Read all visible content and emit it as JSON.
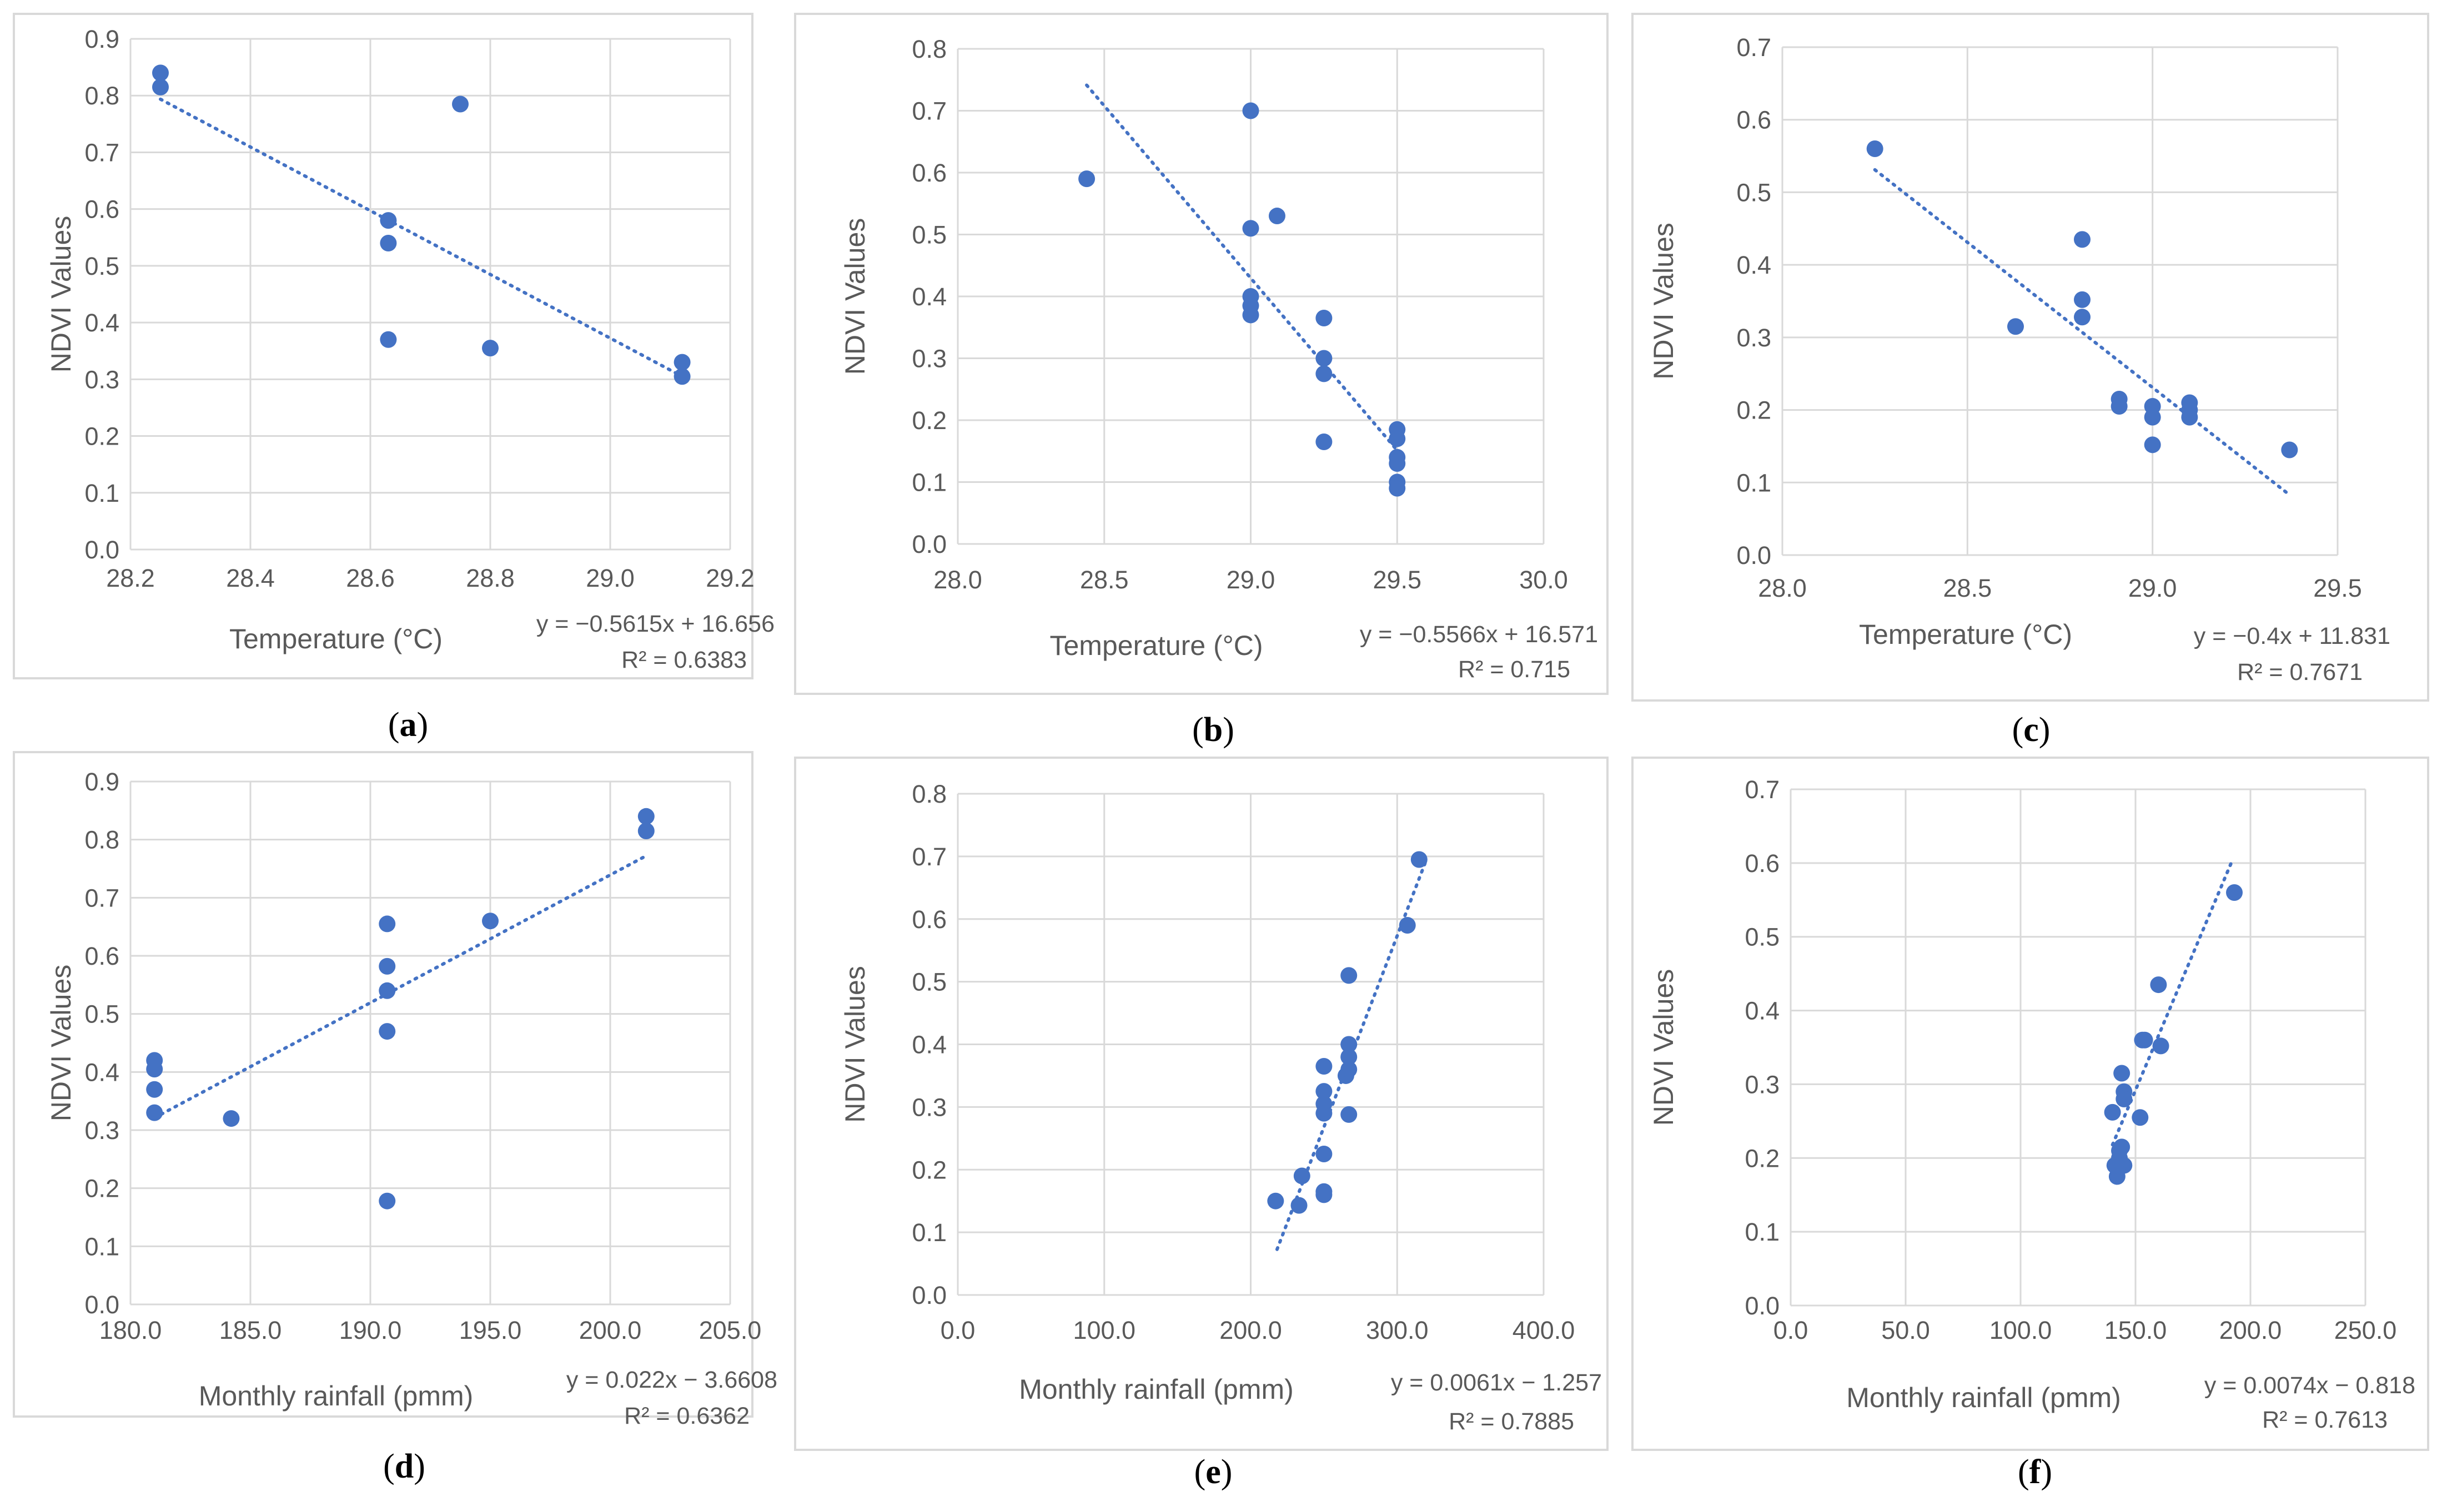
{
  "chart_data": [
    {
      "id": "a",
      "type": "scatter",
      "caption_letter": "a",
      "xlabel": "Temperature (°C)",
      "ylabel": "NDVI Values",
      "xlim": [
        28.2,
        29.2
      ],
      "xstep": 0.2,
      "xdecimals": 1,
      "ylim": [
        0,
        0.9
      ],
      "ystep": 0.1,
      "ydecimals": 1,
      "x": [
        28.25,
        28.25,
        28.75,
        28.63,
        28.63,
        28.63,
        28.8,
        29.12,
        29.12
      ],
      "y": [
        0.84,
        0.815,
        0.785,
        0.58,
        0.54,
        0.37,
        0.355,
        0.33,
        0.305
      ],
      "trendline": {
        "slope": -0.5615,
        "intercept": 16.656,
        "x_range": [
          28.25,
          29.12
        ]
      },
      "equation": "y = −0.5615x + 16.656",
      "r_squared": "R² = 0.6383"
    },
    {
      "id": "b",
      "type": "scatter",
      "caption_letter": "b",
      "xlabel": "Temperature (°C)",
      "ylabel": "NDVI Values",
      "xlim": [
        28.0,
        30.0
      ],
      "xstep": 0.5,
      "xdecimals": 1,
      "ylim": [
        0,
        0.8
      ],
      "ystep": 0.1,
      "ydecimals": 1,
      "x": [
        28.44,
        29.0,
        29.0,
        29.09,
        29.0,
        29.0,
        29.0,
        29.25,
        29.25,
        29.25,
        29.25,
        29.5,
        29.5,
        29.5,
        29.5,
        29.5,
        29.5
      ],
      "y": [
        0.59,
        0.7,
        0.51,
        0.53,
        0.4,
        0.385,
        0.37,
        0.365,
        0.3,
        0.275,
        0.165,
        0.185,
        0.17,
        0.14,
        0.13,
        0.1,
        0.09
      ],
      "trendline": {
        "slope": -0.5566,
        "intercept": 16.571,
        "x_range": [
          28.44,
          29.5
        ]
      },
      "equation": "y = −0.5566x + 16.571",
      "r_squared": "R² = 0.715"
    },
    {
      "id": "c",
      "type": "scatter",
      "caption_letter": "c",
      "xlabel": "Temperature (°C)",
      "ylabel": "NDVI Values",
      "xlim": [
        28.0,
        29.5
      ],
      "xstep": 0.5,
      "xdecimals": 1,
      "ylim": [
        0,
        0.7
      ],
      "ystep": 0.1,
      "ydecimals": 1,
      "x": [
        28.25,
        28.63,
        28.81,
        28.81,
        28.81,
        28.91,
        28.91,
        29.0,
        29.0,
        29.0,
        29.1,
        29.1,
        29.1,
        29.37
      ],
      "y": [
        0.56,
        0.315,
        0.435,
        0.352,
        0.328,
        0.215,
        0.205,
        0.205,
        0.19,
        0.152,
        0.21,
        0.2,
        0.19,
        0.145
      ],
      "trendline": {
        "slope": -0.4,
        "intercept": 11.831,
        "x_range": [
          28.25,
          29.37
        ]
      },
      "equation": "y = −0.4x + 11.831",
      "r_squared": "R² = 0.7671"
    },
    {
      "id": "d",
      "type": "scatter",
      "caption_letter": "d",
      "xlabel": "Monthly rainfall (pmm)",
      "ylabel": "NDVI Values",
      "xlim": [
        180,
        205
      ],
      "xstep": 5,
      "xdecimals": 1,
      "ylim": [
        0,
        0.9
      ],
      "ystep": 0.1,
      "ydecimals": 1,
      "x": [
        181.0,
        181.0,
        181.0,
        181.0,
        184.2,
        190.7,
        190.7,
        190.7,
        190.7,
        190.7,
        195.0,
        201.5,
        201.5
      ],
      "y": [
        0.42,
        0.405,
        0.37,
        0.33,
        0.32,
        0.655,
        0.582,
        0.54,
        0.47,
        0.178,
        0.66,
        0.84,
        0.815
      ],
      "trendline": {
        "slope": 0.022,
        "intercept": -3.6608,
        "x_range": [
          181.0,
          201.5
        ]
      },
      "equation": "y = 0.022x − 3.6608",
      "r_squared": "R² = 0.6362"
    },
    {
      "id": "e",
      "type": "scatter",
      "caption_letter": "e",
      "xlabel": "Monthly rainfall (pmm)",
      "ylabel": "NDVI Values",
      "xlim": [
        0,
        400
      ],
      "xstep": 100,
      "xdecimals": 1,
      "ylim": [
        0,
        0.8
      ],
      "ystep": 0.1,
      "ydecimals": 1,
      "x": [
        217,
        233,
        235,
        250,
        250,
        250,
        250,
        250,
        250,
        250,
        265,
        267,
        267,
        267,
        267,
        267,
        307,
        315
      ],
      "y": [
        0.15,
        0.143,
        0.19,
        0.225,
        0.165,
        0.16,
        0.365,
        0.325,
        0.305,
        0.29,
        0.35,
        0.51,
        0.4,
        0.38,
        0.36,
        0.288,
        0.59,
        0.695
      ],
      "trendline": {
        "slope": 0.0061,
        "intercept": -1.257,
        "x_range": [
          218,
          319
        ]
      },
      "equation": "y = 0.0061x − 1.257",
      "r_squared": "R² = 0.7885"
    },
    {
      "id": "f",
      "type": "scatter",
      "caption_letter": "f",
      "xlabel": "Monthly rainfall (pmm)",
      "ylabel": "NDVI Values",
      "xlim": [
        0,
        250
      ],
      "xstep": 50,
      "xdecimals": 1,
      "ylim": [
        0,
        0.7
      ],
      "ystep": 0.1,
      "ydecimals": 1,
      "x": [
        140,
        141,
        142,
        143,
        143,
        144,
        144,
        145,
        145,
        145,
        152,
        153,
        154,
        160,
        161,
        193
      ],
      "y": [
        0.262,
        0.19,
        0.175,
        0.2,
        0.21,
        0.215,
        0.315,
        0.29,
        0.28,
        0.19,
        0.255,
        0.36,
        0.36,
        0.435,
        0.352,
        0.56
      ],
      "trendline": {
        "slope": 0.0074,
        "intercept": -0.818,
        "x_range": [
          140,
          192
        ]
      },
      "equation": "y = 0.0074x − 0.818",
      "r_squared": "R² = 0.7613"
    }
  ]
}
